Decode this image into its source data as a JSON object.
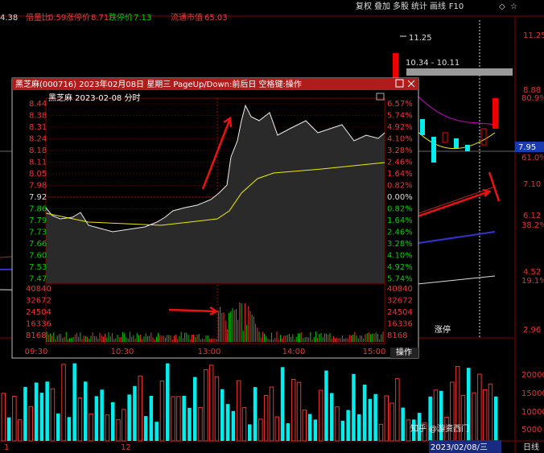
{
  "toolbar": [
    "复权",
    "叠加",
    "多股",
    "统计",
    "画线",
    "F10"
  ],
  "info": {
    "price": "4.38",
    "ratio_label": "倍量比",
    "ratio": "0.59",
    "limit_up_label": "涨停价",
    "limit_up": "8.71",
    "limit_down_label": "跌停价",
    "limit_down": "7.13",
    "cap_label": "流通市值",
    "cap": "65.03"
  },
  "main": {
    "high_label": "11.25",
    "range_label": "10.34 - 10.11",
    "limit_tag": "涨停",
    "current": "7.95",
    "price_axis": [
      "11.25",
      "8.88",
      "7.10",
      "6.12",
      "4.52",
      "2.96"
    ],
    "fib_axis": [
      "80.9%",
      "61.0%",
      "38.2%",
      "19.1%"
    ],
    "volume_axis": [
      "20000",
      "15000",
      "10000",
      "5000"
    ],
    "date_axis": [
      "1",
      "12",
      "2023/02/08/三"
    ],
    "period": "日线"
  },
  "popup": {
    "title": "黑芝麻(000716) 2023年02月08日 星期三 PageUp/Down:前后日 空格键:操作",
    "subtitle": "黑芝麻  2023-02-08 分时",
    "price_axis": [
      "8.44",
      "8.38",
      "8.31",
      "8.24",
      "8.18",
      "8.11",
      "8.05",
      "7.98",
      "7.92",
      "7.86",
      "7.79",
      "7.73",
      "7.66",
      "7.60",
      "7.53",
      "7.47"
    ],
    "pct_axis": [
      "6.57%",
      "5.74%",
      "4.92%",
      "4.10%",
      "3.28%",
      "2.46%",
      "1.64%",
      "0.82%",
      "0.00%",
      "0.82%",
      "1.64%",
      "2.46%",
      "3.28%",
      "4.10%",
      "4.92%",
      "5.74%"
    ],
    "volume_axis": [
      "40840",
      "32672",
      "24504",
      "16336",
      "8168"
    ],
    "time_axis": [
      "09:30",
      "10:30",
      "13:00",
      "14:00",
      "15:00"
    ],
    "action": "操作"
  },
  "watermark": "知乎 @游资西门"
}
